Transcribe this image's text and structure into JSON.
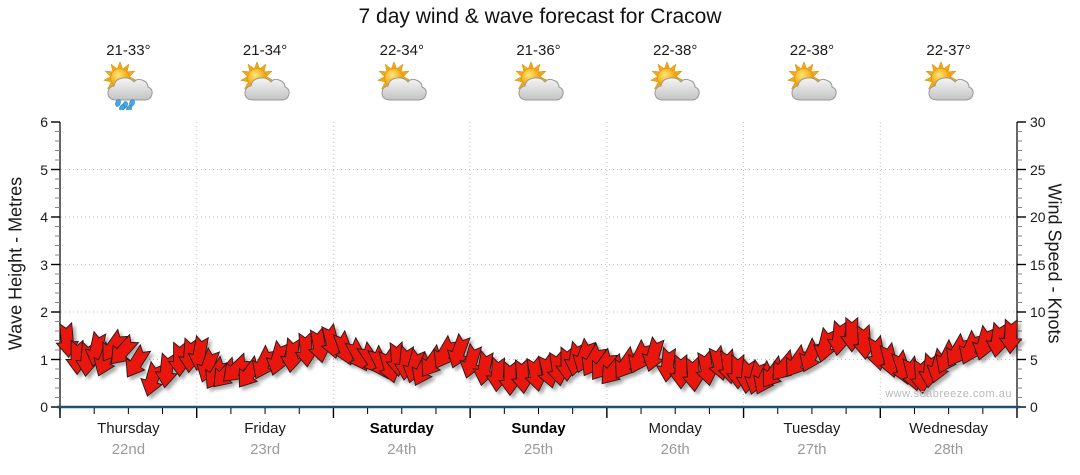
{
  "chart_data": {
    "type": "wind-wave-forecast",
    "title": "7 day wind & wave forecast for Cracow",
    "watermark": "www.seabreeze.com.au",
    "left_axis": {
      "label": "Wave Height - Metres",
      "min": 0,
      "max": 6,
      "major_ticks": [
        0,
        1,
        2,
        3,
        4,
        5,
        6
      ],
      "minor_step": 0.2
    },
    "right_axis": {
      "label": "Wind Speed - Knots",
      "min": 0,
      "max": 30,
      "major_ticks": [
        0,
        5,
        10,
        15,
        20,
        25,
        30
      ],
      "minor_step": 1
    },
    "grid": {
      "horizontal_at_metres": [
        1,
        2,
        3,
        4,
        5
      ],
      "vertical_at_day_boundaries": true,
      "style": "dotted"
    },
    "days": [
      {
        "name": "Thursday",
        "date": "22nd",
        "temp_range": "21-33°",
        "icon": "sun-cloud-rain-icon",
        "bold": false
      },
      {
        "name": "Friday",
        "date": "23rd",
        "temp_range": "21-34°",
        "icon": "sun-cloud-icon",
        "bold": false
      },
      {
        "name": "Saturday",
        "date": "24th",
        "temp_range": "22-34°",
        "icon": "sun-cloud-icon",
        "bold": true
      },
      {
        "name": "Sunday",
        "date": "25th",
        "temp_range": "21-36°",
        "icon": "sun-cloud-icon",
        "bold": true
      },
      {
        "name": "Monday",
        "date": "26th",
        "temp_range": "22-38°",
        "icon": "sun-cloud-icon",
        "bold": false
      },
      {
        "name": "Tuesday",
        "date": "27th",
        "temp_range": "22-38°",
        "icon": "sun-cloud-icon",
        "bold": false
      },
      {
        "name": "Wednesday",
        "date": "28th",
        "temp_range": "22-37°",
        "icon": "sun-cloud-icon",
        "bold": false
      }
    ],
    "series": {
      "points_per_day": 12,
      "wind_speed_knots": [
        8.8,
        7.0,
        6.8,
        7.8,
        6.6,
        7.8,
        7.2,
        6.2,
        4.6,
        5.6,
        6.8,
        7.2,
        7.4,
        6.0,
        5.0,
        4.8,
        5.2,
        5.0,
        6.2,
        6.8,
        7.2,
        7.8,
        8.2,
        8.6,
        7.8,
        7.0,
        6.5,
        6.2,
        6.0,
        6.8,
        6.4,
        6.0,
        5.5,
        6.2,
        7.2,
        7.5,
        6.5,
        5.8,
        5.2,
        4.8,
        5.0,
        5.2,
        5.5,
        5.8,
        6.3,
        6.8,
        7.0,
        6.4,
        5.8,
        5.2,
        6.0,
        6.8,
        7.2,
        6.2,
        5.5,
        5.2,
        5.8,
        6.3,
        6.0,
        5.5,
        5.0,
        4.8,
        4.6,
        5.0,
        5.6,
        6.2,
        7.0,
        8.2,
        9.0,
        9.4,
        8.6,
        7.4,
        6.6,
        5.8,
        5.2,
        5.0,
        5.6,
        6.0,
        6.8,
        7.4,
        7.8,
        8.4,
        8.8,
        9.2
      ],
      "wind_direction_deg": [
        175,
        180,
        185,
        192,
        202,
        215,
        222,
        212,
        196,
        186,
        180,
        184,
        190,
        200,
        212,
        222,
        226,
        216,
        206,
        196,
        186,
        176,
        170,
        166,
        160,
        152,
        146,
        154,
        164,
        176,
        186,
        196,
        206,
        214,
        210,
        200,
        196,
        190,
        184,
        180,
        176,
        170,
        166,
        172,
        180,
        190,
        200,
        210,
        216,
        220,
        214,
        206,
        196,
        186,
        180,
        176,
        170,
        166,
        172,
        180,
        186,
        196,
        206,
        216,
        220,
        214,
        204,
        194,
        186,
        180,
        176,
        170,
        166,
        162,
        166,
        176,
        186,
        196,
        206,
        210,
        204,
        196,
        188,
        182
      ]
    },
    "colors": {
      "arrow_fill": "#e8150e",
      "arrow_stroke": "#1c1c1c",
      "x_axis_line": "#1d5173",
      "grid_dotted": "#c3c3c3",
      "major_tick": "#000000",
      "minor_tick": "#858585",
      "date_text": "#9a9a9a",
      "watermark_text": "#b9b9b9"
    }
  }
}
